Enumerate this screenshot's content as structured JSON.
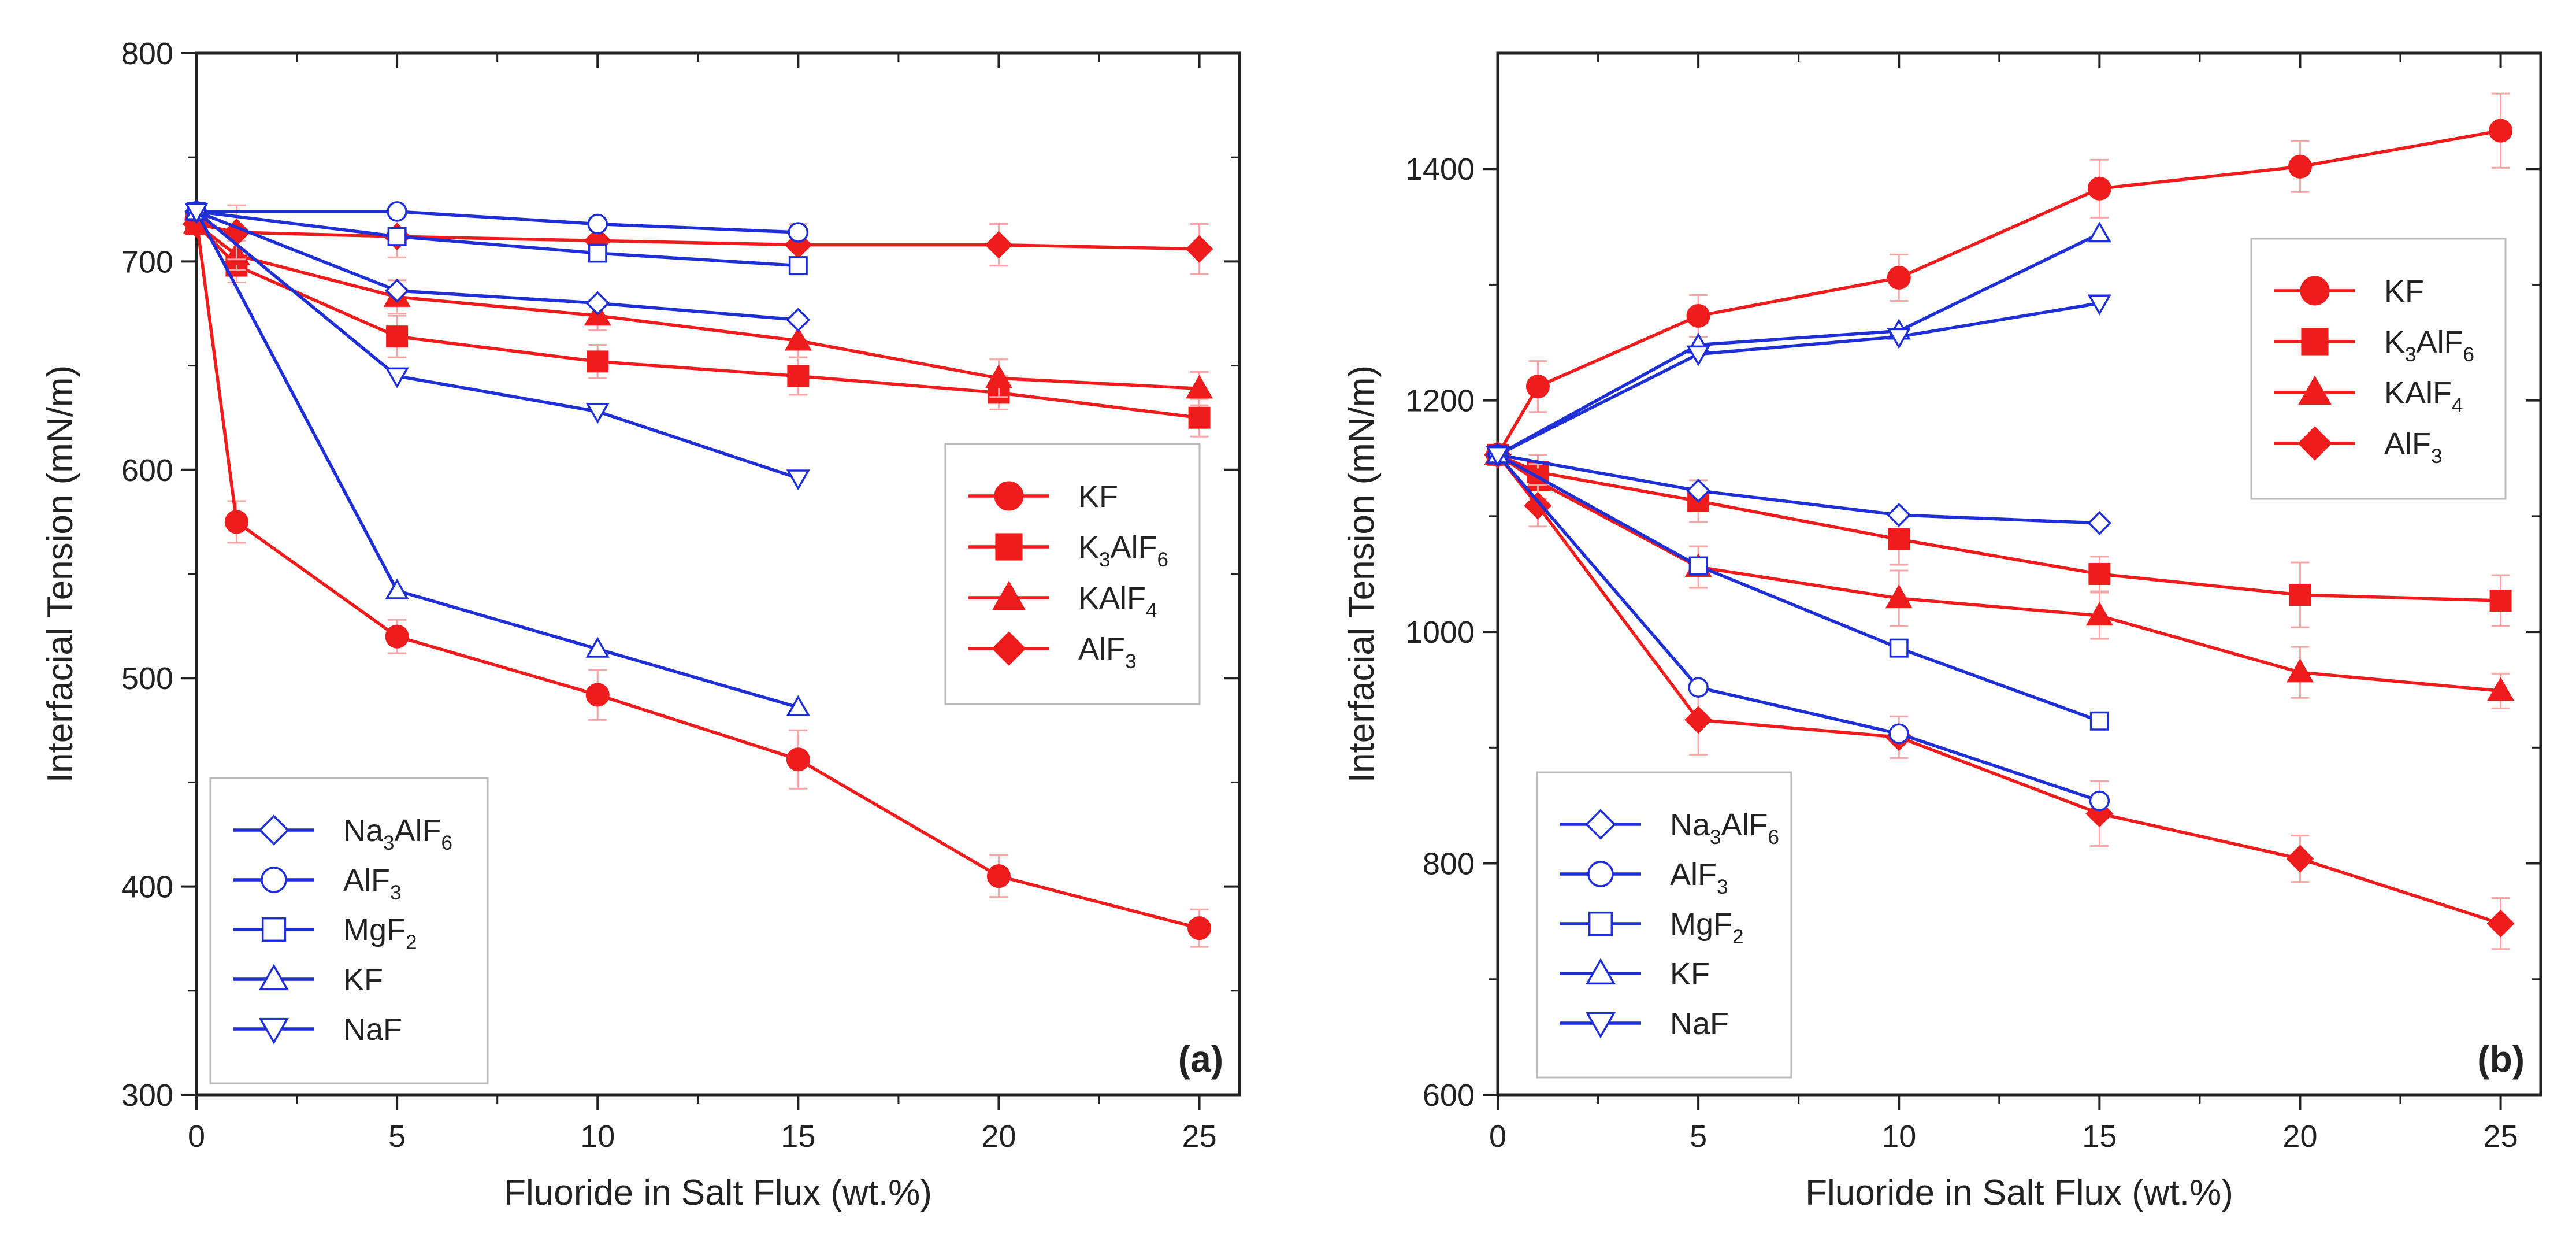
{
  "colors": {
    "red": "#ee1c1c",
    "blue": "#1f2fd6",
    "errorbar": "#f4a6a6",
    "axis": "#222222"
  },
  "chart_data": [
    {
      "id": "a",
      "type": "line",
      "panel_label": "(a)",
      "xlabel": "Fluoride in Salt Flux (wt.%)",
      "ylabel": "Interfacial Tension (mN/m)",
      "xlim": [
        0,
        26
      ],
      "ylim": [
        300,
        800
      ],
      "xticks": [
        0,
        5,
        10,
        15,
        20,
        25
      ],
      "yticks": [
        300,
        400,
        500,
        600,
        700,
        800
      ],
      "legend_red_position": "center-right",
      "legend_blue_position": "bottom-left",
      "series": [
        {
          "name": "KF",
          "group": "red",
          "marker": "circle",
          "filled": true,
          "x": [
            0,
            1,
            5,
            10,
            15,
            20,
            25
          ],
          "y": [
            720,
            575,
            520,
            492,
            461,
            405,
            380
          ],
          "err": [
            0,
            10,
            8,
            12,
            14,
            10,
            9
          ]
        },
        {
          "name": "K3AlF6",
          "label_base": "K",
          "label_parts": [
            [
              "K",
              ""
            ],
            [
              "3",
              "sub"
            ],
            [
              "AlF",
              ""
            ],
            [
              "6",
              "sub"
            ]
          ],
          "group": "red",
          "marker": "square",
          "filled": true,
          "x": [
            0,
            1,
            5,
            10,
            15,
            20,
            25
          ],
          "y": [
            718,
            698,
            664,
            652,
            645,
            637,
            625
          ],
          "err": [
            0,
            8,
            10,
            8,
            9,
            8,
            9
          ]
        },
        {
          "name": "KAlF4",
          "label_parts": [
            [
              "KAlF",
              ""
            ],
            [
              "4",
              "sub"
            ]
          ],
          "group": "red",
          "marker": "triangle",
          "filled": true,
          "x": [
            0,
            1,
            5,
            10,
            15,
            20,
            25
          ],
          "y": [
            718,
            703,
            683,
            674,
            662,
            644,
            639
          ],
          "err": [
            0,
            7,
            8,
            7,
            8,
            9,
            8
          ]
        },
        {
          "name": "AlF3",
          "label_parts": [
            [
              "AlF",
              ""
            ],
            [
              "3",
              "sub"
            ]
          ],
          "group": "red",
          "marker": "diamond",
          "filled": true,
          "x": [
            0,
            1,
            5,
            10,
            15,
            20,
            25
          ],
          "y": [
            718,
            714,
            712,
            710,
            708,
            708,
            706
          ],
          "err": [
            0,
            13,
            10,
            9,
            10,
            10,
            12
          ]
        },
        {
          "name": "Na3AlF6",
          "label_parts": [
            [
              "Na",
              ""
            ],
            [
              "3",
              "sub"
            ],
            [
              "AlF",
              ""
            ],
            [
              "6",
              "sub"
            ]
          ],
          "group": "blue",
          "marker": "diamond",
          "filled": false,
          "x": [
            0,
            5,
            10,
            15
          ],
          "y": [
            724,
            686,
            680,
            672
          ]
        },
        {
          "name": "AlF3",
          "label_parts": [
            [
              "AlF",
              ""
            ],
            [
              "3",
              "sub"
            ]
          ],
          "group": "blue",
          "marker": "circle",
          "filled": false,
          "x": [
            0,
            5,
            10,
            15
          ],
          "y": [
            724,
            724,
            718,
            714
          ]
        },
        {
          "name": "MgF2",
          "label_parts": [
            [
              "MgF",
              ""
            ],
            [
              "2",
              "sub"
            ]
          ],
          "group": "blue",
          "marker": "square",
          "filled": false,
          "x": [
            0,
            5,
            10,
            15
          ],
          "y": [
            724,
            712,
            704,
            698
          ]
        },
        {
          "name": "KF",
          "label_parts": [
            [
              "KF",
              ""
            ]
          ],
          "group": "blue",
          "marker": "triangle",
          "filled": false,
          "x": [
            0,
            5,
            10,
            15
          ],
          "y": [
            724,
            542,
            514,
            486
          ]
        },
        {
          "name": "NaF",
          "label_parts": [
            [
              "NaF",
              ""
            ]
          ],
          "group": "blue",
          "marker": "invtriangle",
          "filled": false,
          "x": [
            0,
            5,
            10,
            15
          ],
          "y": [
            724,
            645,
            628,
            596
          ]
        }
      ]
    },
    {
      "id": "b",
      "type": "line",
      "panel_label": "(b)",
      "xlabel": "Fluoride in Salt Flux (wt.%)",
      "ylabel": "Interfacial Tension (mN/m)",
      "xlim": [
        0,
        26
      ],
      "ylim": [
        600,
        1500
      ],
      "xticks": [
        0,
        5,
        10,
        15,
        20,
        25
      ],
      "yticks": [
        600,
        800,
        1000,
        1200,
        1400
      ],
      "legend_red_position": "top-right",
      "legend_blue_position": "bottom-left",
      "series": [
        {
          "name": "KF",
          "group": "red",
          "marker": "circle",
          "filled": true,
          "x": [
            0,
            1,
            5,
            10,
            15,
            20,
            25
          ],
          "y": [
            1153,
            1212,
            1273,
            1306,
            1383,
            1402,
            1433
          ],
          "err": [
            0,
            22,
            18,
            20,
            25,
            22,
            32
          ]
        },
        {
          "name": "K3AlF6",
          "label_parts": [
            [
              "K",
              ""
            ],
            [
              "3",
              "sub"
            ],
            [
              "AlF",
              ""
            ],
            [
              "6",
              "sub"
            ]
          ],
          "group": "red",
          "marker": "square",
          "filled": true,
          "x": [
            0,
            1,
            5,
            10,
            15,
            20,
            25
          ],
          "y": [
            1153,
            1138,
            1113,
            1080,
            1050,
            1032,
            1027
          ],
          "err": [
            0,
            15,
            18,
            22,
            15,
            28,
            22
          ]
        },
        {
          "name": "KAlF4",
          "label_parts": [
            [
              "KAlF",
              ""
            ],
            [
              "4",
              "sub"
            ]
          ],
          "group": "red",
          "marker": "triangle",
          "filled": true,
          "x": [
            0,
            1,
            5,
            10,
            15,
            20,
            25
          ],
          "y": [
            1153,
            1130,
            1056,
            1029,
            1014,
            965,
            949
          ],
          "err": [
            0,
            15,
            18,
            24,
            20,
            22,
            15
          ]
        },
        {
          "name": "AlF3",
          "label_parts": [
            [
              "AlF",
              ""
            ],
            [
              "3",
              "sub"
            ]
          ],
          "group": "red",
          "marker": "diamond",
          "filled": true,
          "x": [
            0,
            1,
            5,
            10,
            15,
            20,
            25
          ],
          "y": [
            1153,
            1109,
            924,
            909,
            843,
            804,
            748
          ],
          "err": [
            0,
            18,
            30,
            18,
            28,
            20,
            22
          ]
        },
        {
          "name": "Na3AlF6",
          "label_parts": [
            [
              "Na",
              ""
            ],
            [
              "3",
              "sub"
            ],
            [
              "AlF",
              ""
            ],
            [
              "6",
              "sub"
            ]
          ],
          "group": "blue",
          "marker": "diamond",
          "filled": false,
          "x": [
            0,
            5,
            10,
            15
          ],
          "y": [
            1153,
            1122,
            1101,
            1094
          ]
        },
        {
          "name": "AlF3",
          "label_parts": [
            [
              "AlF",
              ""
            ],
            [
              "3",
              "sub"
            ]
          ],
          "group": "blue",
          "marker": "circle",
          "filled": false,
          "x": [
            0,
            5,
            10,
            15
          ],
          "y": [
            1153,
            952,
            912,
            854
          ]
        },
        {
          "name": "MgF2",
          "label_parts": [
            [
              "MgF",
              ""
            ],
            [
              "2",
              "sub"
            ]
          ],
          "group": "blue",
          "marker": "square",
          "filled": false,
          "x": [
            0,
            5,
            10,
            15
          ],
          "y": [
            1153,
            1057,
            986,
            923
          ]
        },
        {
          "name": "KF",
          "label_parts": [
            [
              "KF",
              ""
            ]
          ],
          "group": "blue",
          "marker": "triangle",
          "filled": false,
          "x": [
            0,
            5,
            10,
            15
          ],
          "y": [
            1153,
            1248,
            1260,
            1344
          ]
        },
        {
          "name": "NaF",
          "label_parts": [
            [
              "NaF",
              ""
            ]
          ],
          "group": "blue",
          "marker": "invtriangle",
          "filled": false,
          "x": [
            0,
            5,
            10,
            15
          ],
          "y": [
            1153,
            1240,
            1255,
            1284
          ]
        }
      ]
    }
  ]
}
